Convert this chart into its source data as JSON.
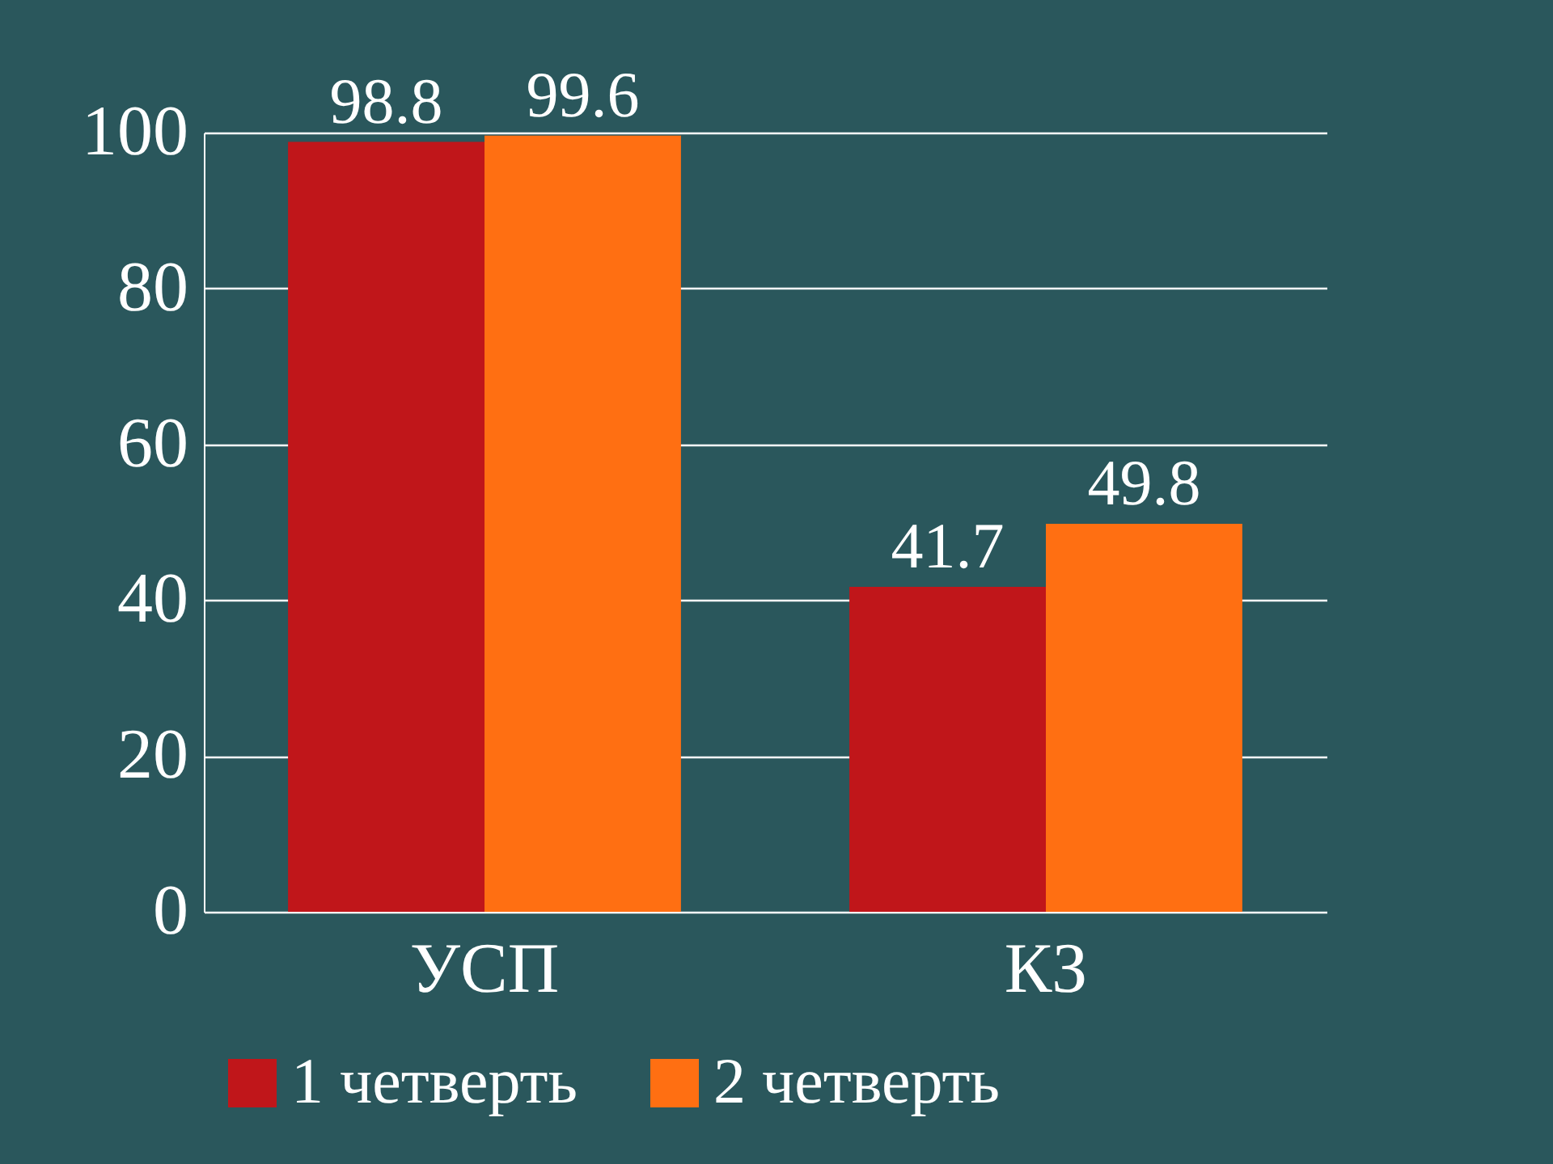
{
  "chart_data": {
    "type": "bar",
    "categories": [
      "УСП",
      "КЗ"
    ],
    "series": [
      {
        "name": "1 четверть",
        "color": "#c0161a",
        "values": [
          98.8,
          41.7
        ]
      },
      {
        "name": "2 четверть",
        "color": "#ff6f12",
        "values": [
          99.6,
          49.8
        ]
      }
    ],
    "ylim": [
      0,
      100
    ],
    "yticks": [
      0,
      20,
      40,
      60,
      80,
      100
    ],
    "grid": "y",
    "legend": "bottom",
    "data_labels": true
  }
}
